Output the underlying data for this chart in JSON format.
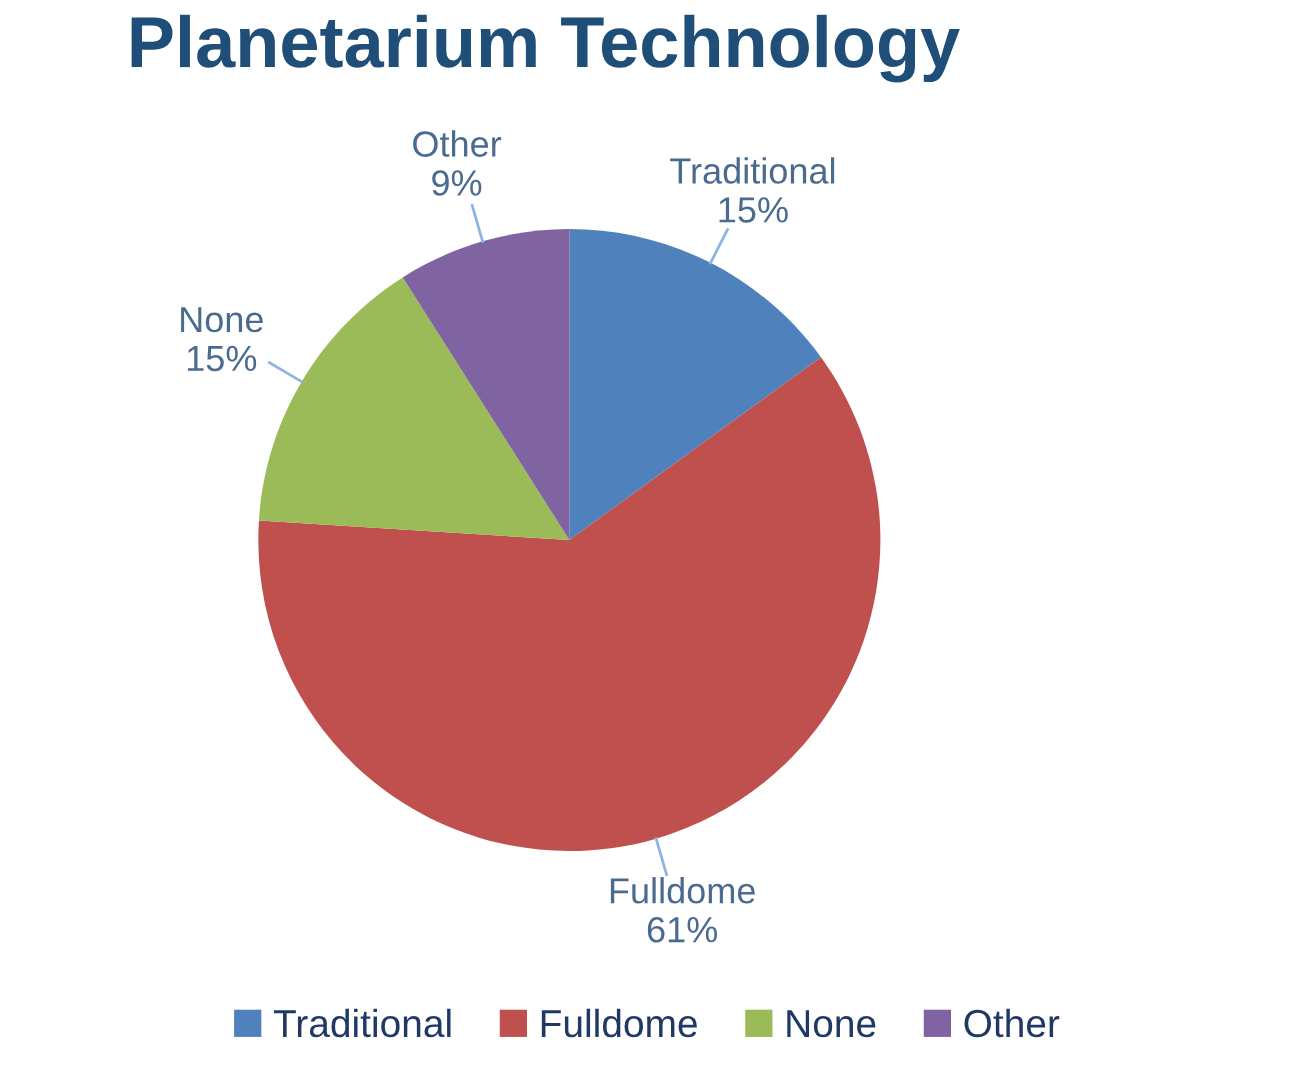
{
  "chart_data": {
    "type": "pie",
    "title": "Planetarium Technology",
    "categories": [
      "Traditional",
      "Fulldome",
      "None",
      "Other"
    ],
    "values": [
      15,
      61,
      15,
      9
    ],
    "value_labels": [
      "15%",
      "61%",
      "15%",
      "9%"
    ],
    "colors": [
      "#4f81bd",
      "#c0504d",
      "#9bbb59",
      "#8064a2"
    ],
    "legend": "bottom"
  }
}
